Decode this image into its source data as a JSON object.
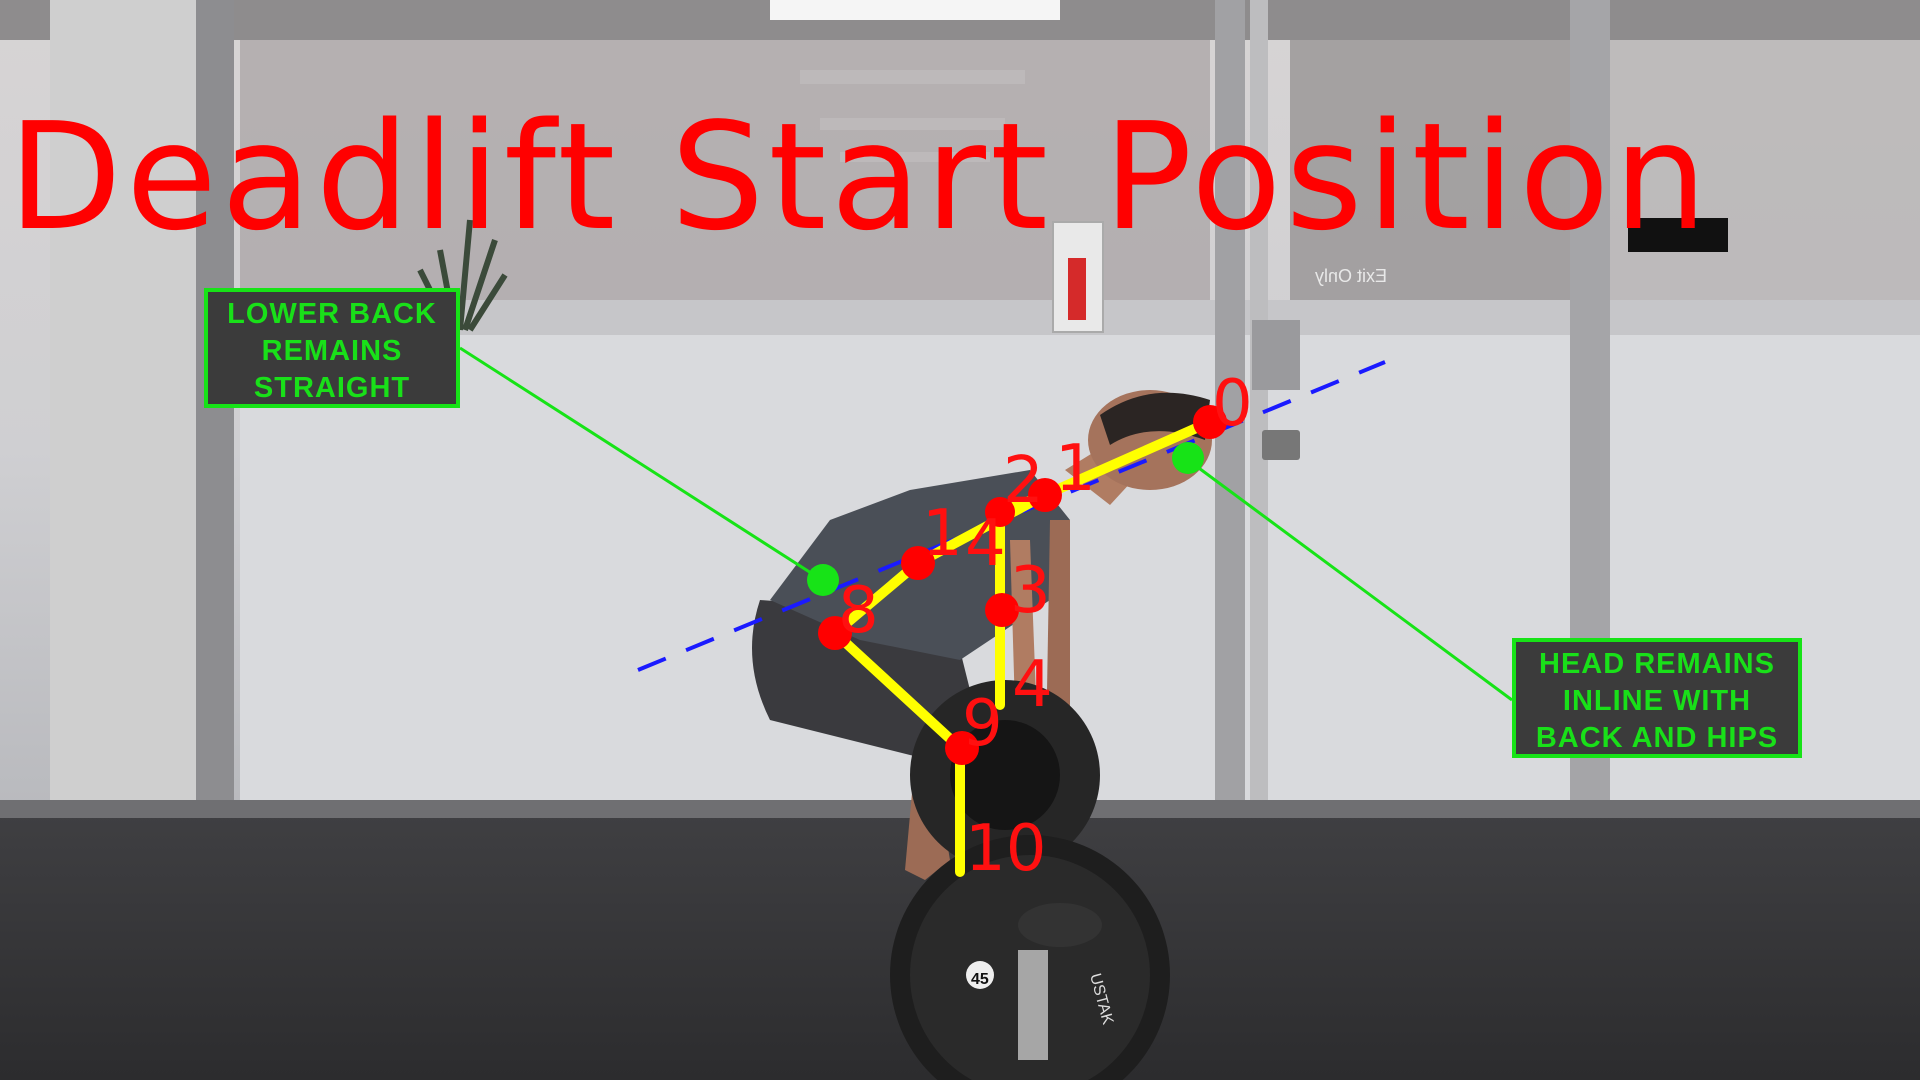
{
  "title": "Deadlift Start Position",
  "callouts": {
    "lower_back": [
      "LOWER BACK",
      "REMAINS",
      "STRAIGHT"
    ],
    "head": [
      "HEAD REMAINS",
      "INLINE WITH",
      "BACK AND HIPS"
    ]
  },
  "keypoint_labels": [
    "0",
    "1",
    "2",
    "3",
    "4",
    "8",
    "9",
    "10",
    "1",
    "4"
  ],
  "sign": "Exit Only",
  "plate_labels": [
    "45",
    "USTAK"
  ],
  "colors": {
    "title": "#ff0000",
    "skeleton": "#ffff00",
    "joint": "#ff0000",
    "reference_point": "#17e317",
    "alignment_line": "#1a1aff"
  }
}
